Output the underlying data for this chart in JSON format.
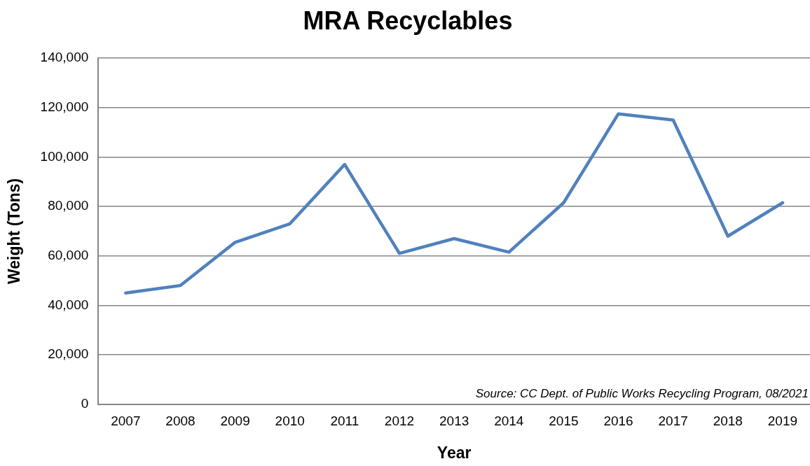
{
  "chart_data": {
    "type": "line",
    "title": "MRA Recyclables",
    "xlabel": "Year",
    "ylabel": "Weight (Tons)",
    "categories": [
      "2007",
      "2008",
      "2009",
      "2010",
      "2011",
      "2012",
      "2013",
      "2014",
      "2015",
      "2016",
      "2017",
      "2018",
      "2019"
    ],
    "series": [
      {
        "color": "#4f81bd",
        "values": [
          45000,
          48000,
          65500,
          73000,
          97000,
          61000,
          67000,
          61500,
          81500,
          117500,
          115000,
          68000,
          81500
        ]
      }
    ],
    "ylim": [
      0,
      140000
    ],
    "yticks": [
      {
        "value": 0,
        "label": "0"
      },
      {
        "value": 20000,
        "label": "20,000"
      },
      {
        "value": 40000,
        "label": "40,000"
      },
      {
        "value": 60000,
        "label": "60,000"
      },
      {
        "value": 80000,
        "label": "80,000"
      },
      {
        "value": 100000,
        "label": "100,000"
      },
      {
        "value": 120000,
        "label": "120,000"
      },
      {
        "value": 140000,
        "label": "140,000"
      }
    ],
    "grid": "y",
    "legend": false,
    "marker": "none",
    "line_style": "solid",
    "annotations": [
      "Source: CC Dept. of Public Works Recycling Program, 08/2021"
    ]
  }
}
